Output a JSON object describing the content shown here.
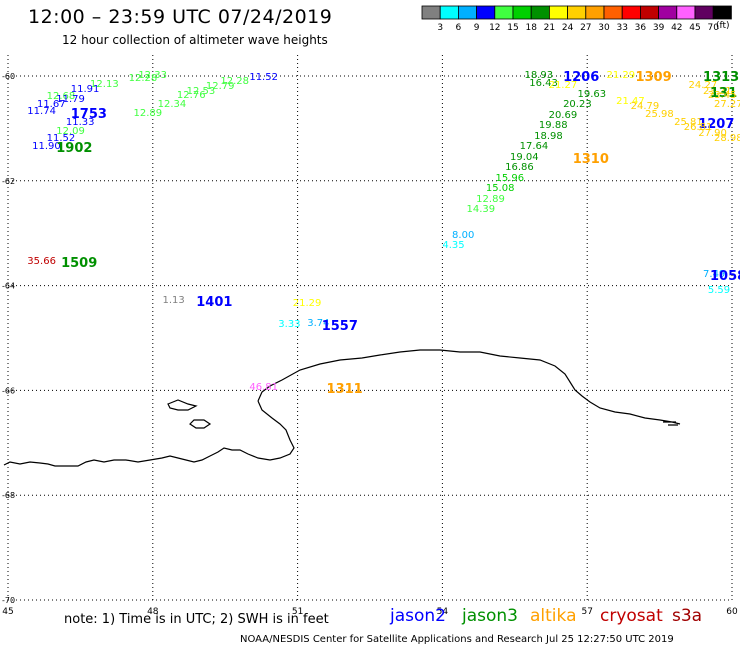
{
  "title": "12:00 – 23:59 UTC 07/24/2019",
  "subtitle": "12 hour collection of altimeter wave heights",
  "legend": {
    "unit": "(ft)",
    "bins": [
      {
        "label": "",
        "color": "#808080"
      },
      {
        "label": "3",
        "color": "#00ffff"
      },
      {
        "label": "6",
        "color": "#00b0ff"
      },
      {
        "label": "9",
        "color": "#0000ff"
      },
      {
        "label": "12",
        "color": "#40ff40"
      },
      {
        "label": "15",
        "color": "#00d000"
      },
      {
        "label": "18",
        "color": "#009000"
      },
      {
        "label": "21",
        "color": "#ffff00"
      },
      {
        "label": "24",
        "color": "#ffd000"
      },
      {
        "label": "27",
        "color": "#ffa000"
      },
      {
        "label": "30",
        "color": "#ff6000"
      },
      {
        "label": "33",
        "color": "#ff0000"
      },
      {
        "label": "36",
        "color": "#c00000"
      },
      {
        "label": "39",
        "color": "#a000a0"
      },
      {
        "label": "42",
        "color": "#ff60ff"
      },
      {
        "label": "45",
        "color": "#600060"
      },
      {
        "label": "70",
        "color": "#000000"
      }
    ]
  },
  "axes": {
    "lon_ticks": [
      "45",
      "48",
      "51",
      "54",
      "57",
      "60"
    ],
    "lat_ticks": [
      "-60",
      "-62",
      "-64",
      "-66",
      "-68",
      "-70"
    ]
  },
  "wave_labels": [
    {
      "text": "12.33",
      "lon": 47.7,
      "lat": -60.0,
      "color": "#40ff40"
    },
    {
      "text": "12.28",
      "lon": 47.5,
      "lat": -60.05,
      "color": "#40ff40"
    },
    {
      "text": "11.52",
      "lon": 50.0,
      "lat": -60.04,
      "color": "#0000ff"
    },
    {
      "text": "12.28",
      "lon": 49.4,
      "lat": -60.12,
      "color": "#40ff40"
    },
    {
      "text": "12.13",
      "lon": 46.7,
      "lat": -60.18,
      "color": "#40ff40"
    },
    {
      "text": "11.91",
      "lon": 46.3,
      "lat": -60.26,
      "color": "#0000ff"
    },
    {
      "text": "12.79",
      "lon": 49.1,
      "lat": -60.22,
      "color": "#40ff40"
    },
    {
      "text": "12.53",
      "lon": 48.7,
      "lat": -60.3,
      "color": "#40ff40"
    },
    {
      "text": "12.68",
      "lon": 45.8,
      "lat": -60.4,
      "color": "#40ff40"
    },
    {
      "text": "12.76",
      "lon": 48.5,
      "lat": -60.38,
      "color": "#40ff40"
    },
    {
      "text": "11.79",
      "lon": 46.0,
      "lat": -60.46,
      "color": "#0000ff"
    },
    {
      "text": "11.67",
      "lon": 45.6,
      "lat": -60.55,
      "color": "#0000ff"
    },
    {
      "text": "12.34",
      "lon": 48.1,
      "lat": -60.55,
      "color": "#40ff40"
    },
    {
      "text": "11.74",
      "lon": 45.4,
      "lat": -60.68,
      "color": "#0000ff"
    },
    {
      "text": "1753",
      "lon": 46.3,
      "lat": -60.7,
      "color": "#0000ff",
      "big": true
    },
    {
      "text": "12.89",
      "lon": 47.6,
      "lat": -60.72,
      "color": "#40ff40"
    },
    {
      "text": "11.33",
      "lon": 46.2,
      "lat": -60.9,
      "color": "#0000ff"
    },
    {
      "text": "12.09",
      "lon": 46.0,
      "lat": -61.06,
      "color": "#40ff40"
    },
    {
      "text": "11.52",
      "lon": 45.8,
      "lat": -61.2,
      "color": "#0000ff"
    },
    {
      "text": "11.90",
      "lon": 45.5,
      "lat": -61.35,
      "color": "#0000ff"
    },
    {
      "text": "1902",
      "lon": 46.0,
      "lat": -61.35,
      "color": "#009000",
      "big": true
    },
    {
      "text": "18.93",
      "lon": 55.7,
      "lat": -60.0,
      "color": "#009000"
    },
    {
      "text": "1206",
      "lon": 56.5,
      "lat": -60.0,
      "color": "#0000ff",
      "big": true
    },
    {
      "text": "21.29",
      "lon": 57.4,
      "lat": -60.0,
      "color": "#ffff00"
    },
    {
      "text": "1309",
      "lon": 58.0,
      "lat": -60.0,
      "color": "#ffa000",
      "big": true
    },
    {
      "text": "1313",
      "lon": 59.4,
      "lat": -60.0,
      "color": "#009000",
      "big": true
    },
    {
      "text": "16.43",
      "lon": 55.8,
      "lat": -60.15,
      "color": "#009000"
    },
    {
      "text": "21.27",
      "lon": 56.2,
      "lat": -60.2,
      "color": "#ffff00"
    },
    {
      "text": "24.27",
      "lon": 59.1,
      "lat": -60.2,
      "color": "#ffd000"
    },
    {
      "text": "23.21",
      "lon": 59.4,
      "lat": -60.3,
      "color": "#ffd000"
    },
    {
      "text": "131",
      "lon": 59.8,
      "lat": -60.3,
      "color": "#009000",
      "big": true
    },
    {
      "text": "19.63",
      "lon": 56.8,
      "lat": -60.36,
      "color": "#009000"
    },
    {
      "text": "23.45",
      "lon": 59.5,
      "lat": -60.38,
      "color": "#ffd000"
    },
    {
      "text": "21.47",
      "lon": 57.6,
      "lat": -60.5,
      "color": "#ffff00"
    },
    {
      "text": "20.23",
      "lon": 56.5,
      "lat": -60.56,
      "color": "#009000"
    },
    {
      "text": "27.27",
      "lon": 59.8,
      "lat": -60.56,
      "color": "#ffd000"
    },
    {
      "text": "24.79",
      "lon": 57.9,
      "lat": -60.6,
      "color": "#ffd000"
    },
    {
      "text": "25.98",
      "lon": 58.2,
      "lat": -60.75,
      "color": "#ffd000"
    },
    {
      "text": "20.69",
      "lon": 56.2,
      "lat": -60.76,
      "color": "#009000"
    },
    {
      "text": "25.81",
      "lon": 58.8,
      "lat": -60.9,
      "color": "#ffd000"
    },
    {
      "text": "1207",
      "lon": 59.3,
      "lat": -60.9,
      "color": "#0000ff",
      "big": true
    },
    {
      "text": "19.88",
      "lon": 56.0,
      "lat": -60.96,
      "color": "#009000"
    },
    {
      "text": "26.81",
      "lon": 59.0,
      "lat": -61.0,
      "color": "#ffd000"
    },
    {
      "text": "27.90",
      "lon": 59.3,
      "lat": -61.1,
      "color": "#ffd000"
    },
    {
      "text": "18.98",
      "lon": 55.9,
      "lat": -61.16,
      "color": "#009000"
    },
    {
      "text": "28.98",
      "lon": 59.7,
      "lat": -61.2,
      "color": "#ffd000"
    },
    {
      "text": "17.64",
      "lon": 55.6,
      "lat": -61.36,
      "color": "#009000"
    },
    {
      "text": "1310",
      "lon": 56.7,
      "lat": -61.56,
      "color": "#ffa000",
      "big": true
    },
    {
      "text": "19.04",
      "lon": 55.4,
      "lat": -61.56,
      "color": "#009000"
    },
    {
      "text": "16.86",
      "lon": 55.3,
      "lat": -61.76,
      "color": "#009000"
    },
    {
      "text": "15.96",
      "lon": 55.1,
      "lat": -61.96,
      "color": "#00d000"
    },
    {
      "text": "15.08",
      "lon": 54.9,
      "lat": -62.16,
      "color": "#00d000"
    },
    {
      "text": "12.89",
      "lon": 54.7,
      "lat": -62.36,
      "color": "#40ff40"
    },
    {
      "text": "14.39",
      "lon": 54.5,
      "lat": -62.56,
      "color": "#40ff40"
    },
    {
      "text": "8.00",
      "lon": 54.2,
      "lat": -63.05,
      "color": "#00b0ff"
    },
    {
      "text": "4.35",
      "lon": 54.0,
      "lat": -63.25,
      "color": "#00ffff"
    },
    {
      "text": "35.66",
      "lon": 45.4,
      "lat": -63.55,
      "color": "#c00000"
    },
    {
      "text": "1509",
      "lon": 46.1,
      "lat": -63.55,
      "color": "#009000",
      "big": true
    },
    {
      "text": "7.49",
      "lon": 59.4,
      "lat": -63.8,
      "color": "#00b0ff"
    },
    {
      "text": "1058",
      "lon": 59.8,
      "lat": -63.8,
      "color": "#0000ff",
      "big": true
    },
    {
      "text": "5.59",
      "lon": 59.5,
      "lat": -64.1,
      "color": "#00ffff"
    },
    {
      "text": "1.13",
      "lon": 48.2,
      "lat": -64.3,
      "color": "#808080"
    },
    {
      "text": "1401",
      "lon": 48.9,
      "lat": -64.3,
      "color": "#0000ff",
      "big": true
    },
    {
      "text": "21.29",
      "lon": 50.9,
      "lat": -64.35,
      "color": "#ffff00"
    },
    {
      "text": "3.33",
      "lon": 50.6,
      "lat": -64.75,
      "color": "#00ffff"
    },
    {
      "text": "3.74",
      "lon": 51.2,
      "lat": -64.73,
      "color": "#00b0ff"
    },
    {
      "text": "1557",
      "lon": 51.5,
      "lat": -64.75,
      "color": "#0000ff",
      "big": true
    },
    {
      "text": "46.81",
      "lon": 50.0,
      "lat": -65.95,
      "color": "#ff60ff"
    },
    {
      "text": "1311",
      "lon": 51.6,
      "lat": -65.95,
      "color": "#ffa000",
      "big": true
    }
  ],
  "note": "note:  1) Time is in UTC;  2) SWH is in feet",
  "satellites": [
    {
      "name": "jason2",
      "color": "#0000ff"
    },
    {
      "name": "jason3",
      "color": "#009000"
    },
    {
      "name": "altika",
      "color": "#ffa000"
    },
    {
      "name": "cryosat",
      "color": "#c00000"
    },
    {
      "name": "s3a",
      "color": "#a00000"
    }
  ],
  "credit": "NOAA/NESDIS Center for Satellite Applications and Research     Jul 25 12:27:50 UTC 2019"
}
